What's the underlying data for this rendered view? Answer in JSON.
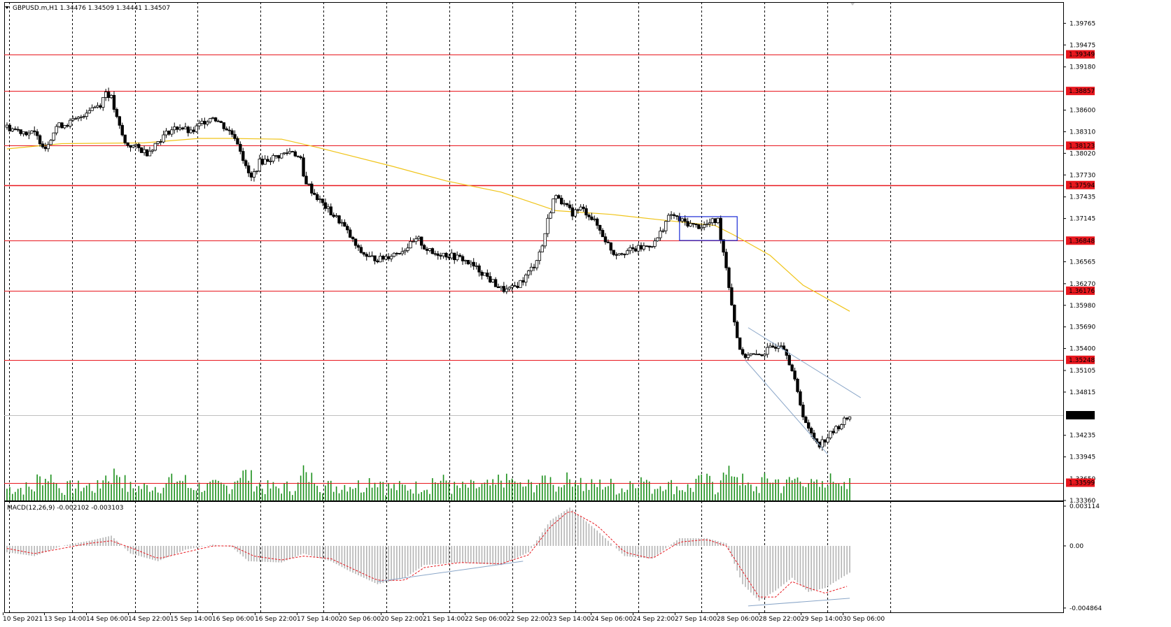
{
  "header": {
    "symbol_line": "GBPUSD.m,H1  1.34476 1.34509 1.34441 1.34507"
  },
  "macd": {
    "label": "MACD(12,26,9) -0.002102 -0.003103",
    "scale_labels": [
      "0.003114",
      "0.00",
      "-0.004864"
    ]
  },
  "colors": {
    "candle": "#000000",
    "volume": "#1a8f1a",
    "levels": "#e8171e",
    "ma": "#f0c419",
    "selection": "#1a2bd6",
    "channel": "#8aa6c8",
    "macd_hist": "#b4b4b4",
    "macd_signal": "#e8171e"
  },
  "chart_data": {
    "type": "candlestick",
    "symbol": "GBPUSD.m",
    "timeframe": "H1",
    "ohlc_current": {
      "open": 1.34476,
      "high": 1.34509,
      "low": 1.34441,
      "close": 1.34507
    },
    "ylim": [
      1.3336,
      1.4005
    ],
    "price_ticks": [
      1.39765,
      1.39475,
      1.3918,
      1.386,
      1.3831,
      1.3802,
      1.3773,
      1.37435,
      1.37145,
      1.36565,
      1.3627,
      1.3598,
      1.3569,
      1.354,
      1.35105,
      1.34815,
      1.34235,
      1.33945,
      1.3336
    ],
    "price_tick_labels": [
      "1.39765",
      "1.39475",
      "1.39180",
      "1.38600",
      "1.38310",
      "1.38020",
      "1.37730",
      "1.37435",
      "1.37145",
      "1.36565",
      "1.36270",
      "1.35980",
      "1.35690",
      "1.35400",
      "1.35105",
      "1.34815",
      "1.34235",
      "1.33945",
      "1.33360"
    ],
    "levels": [
      1.39349,
      1.38857,
      1.38123,
      1.37594,
      1.36848,
      1.36176,
      1.35248,
      1.33599
    ],
    "level_labels": [
      "1.39349",
      "1.38857",
      "1.38123",
      "1.37594",
      "1.36848",
      "1.36176",
      "1.35248",
      "1.33599"
    ],
    "current_price": 1.34507,
    "current_price_label": "1.34507",
    "faded_price_label": "1.33650",
    "x_labels": [
      "10 Sep 2021",
      "13 Sep 14:00",
      "14 Sep 06:00",
      "14 Sep 22:00",
      "15 Sep 14:00",
      "16 Sep 06:00",
      "16 Sep 22:00",
      "17 Sep 14:00",
      "20 Sep 06:00",
      "20 Sep 22:00",
      "21 Sep 14:00",
      "22 Sep 06:00",
      "22 Sep 22:00",
      "23 Sep 14:00",
      "24 Sep 06:00",
      "24 Sep 22:00",
      "27 Sep 14:00",
      "28 Sep 06:00",
      "28 Sep 22:00",
      "29 Sep 14:00",
      "30 Sep 06:00"
    ],
    "close_path": [
      [
        0,
        1.3837
      ],
      [
        5,
        1.3832
      ],
      [
        10,
        1.3828
      ],
      [
        14,
        1.381
      ],
      [
        18,
        1.3838
      ],
      [
        22,
        1.3842
      ],
      [
        26,
        1.3848
      ],
      [
        30,
        1.3862
      ],
      [
        34,
        1.3868
      ],
      [
        36,
        1.3885
      ],
      [
        38,
        1.3876
      ],
      [
        40,
        1.3848
      ],
      [
        43,
        1.3815
      ],
      [
        47,
        1.381
      ],
      [
        51,
        1.3803
      ],
      [
        55,
        1.3818
      ],
      [
        59,
        1.3832
      ],
      [
        63,
        1.3838
      ],
      [
        67,
        1.3829
      ],
      [
        71,
        1.3843
      ],
      [
        75,
        1.3852
      ],
      [
        79,
        1.3838
      ],
      [
        83,
        1.3825
      ],
      [
        85,
        1.3808
      ],
      [
        87,
        1.3782
      ],
      [
        89,
        1.3768
      ],
      [
        92,
        1.379
      ],
      [
        96,
        1.3795
      ],
      [
        100,
        1.38
      ],
      [
        104,
        1.3806
      ],
      [
        107,
        1.3792
      ],
      [
        108,
        1.377
      ],
      [
        111,
        1.3752
      ],
      [
        114,
        1.3738
      ],
      [
        118,
        1.3722
      ],
      [
        122,
        1.3708
      ],
      [
        125,
        1.369
      ],
      [
        128,
        1.3672
      ],
      [
        132,
        1.3662
      ],
      [
        136,
        1.366
      ],
      [
        140,
        1.3666
      ],
      [
        144,
        1.3672
      ],
      [
        148,
        1.3682
      ],
      [
        150,
        1.3686
      ],
      [
        152,
        1.3676
      ],
      [
        155,
        1.3667
      ],
      [
        158,
        1.3668
      ],
      [
        162,
        1.3664
      ],
      [
        166,
        1.366
      ],
      [
        170,
        1.365
      ],
      [
        174,
        1.364
      ],
      [
        176,
        1.3632
      ],
      [
        178,
        1.3626
      ],
      [
        180,
        1.362
      ],
      [
        182,
        1.3618
      ],
      [
        184,
        1.362
      ],
      [
        188,
        1.3632
      ],
      [
        192,
        1.3652
      ],
      [
        195,
        1.3678
      ],
      [
        197,
        1.3712
      ],
      [
        199,
        1.374
      ],
      [
        201,
        1.3745
      ],
      [
        203,
        1.3732
      ],
      [
        206,
        1.3722
      ],
      [
        209,
        1.3728
      ],
      [
        212,
        1.372
      ],
      [
        215,
        1.3705
      ],
      [
        218,
        1.3686
      ],
      [
        221,
        1.3668
      ],
      [
        224,
        1.367
      ],
      [
        228,
        1.3672
      ],
      [
        232,
        1.3676
      ],
      [
        236,
        1.3682
      ],
      [
        238,
        1.3695
      ],
      [
        240,
        1.371
      ],
      [
        242,
        1.372
      ],
      [
        245,
        1.3712
      ],
      [
        248,
        1.3708
      ],
      [
        251,
        1.3704
      ],
      [
        254,
        1.3705
      ],
      [
        257,
        1.371
      ],
      [
        259,
        1.3712
      ],
      [
        260,
        1.369
      ],
      [
        262,
        1.365
      ],
      [
        264,
        1.36
      ],
      [
        266,
        1.3555
      ],
      [
        268,
        1.3528
      ],
      [
        270,
        1.3533
      ],
      [
        273,
        1.3529
      ],
      [
        276,
        1.3535
      ],
      [
        279,
        1.3542
      ],
      [
        282,
        1.3548
      ],
      [
        284,
        1.3535
      ],
      [
        286,
        1.351
      ],
      [
        288,
        1.348
      ],
      [
        290,
        1.3452
      ],
      [
        292,
        1.343
      ],
      [
        294,
        1.342
      ],
      [
        296,
        1.3412
      ],
      [
        298,
        1.3418
      ],
      [
        300,
        1.3425
      ],
      [
        302,
        1.3432
      ],
      [
        304,
        1.344
      ],
      [
        306,
        1.3446
      ],
      [
        307,
        1.3451
      ]
    ],
    "ma_path": [
      [
        0,
        1.3808
      ],
      [
        20,
        1.3815
      ],
      [
        50,
        1.3816
      ],
      [
        70,
        1.3822
      ],
      [
        80,
        1.3822
      ],
      [
        100,
        1.3821
      ],
      [
        113,
        1.381
      ],
      [
        140,
        1.3785
      ],
      [
        160,
        1.3765
      ],
      [
        180,
        1.375
      ],
      [
        200,
        1.3725
      ],
      [
        220,
        1.372
      ],
      [
        240,
        1.3712
      ],
      [
        258,
        1.3705
      ],
      [
        265,
        1.3692
      ],
      [
        278,
        1.3665
      ],
      [
        290,
        1.3625
      ],
      [
        307,
        1.359
      ]
    ],
    "selection_box": {
      "x0": 245,
      "x1": 266,
      "y_low": 1.3685,
      "y_high": 1.3717
    },
    "channel_lines": [
      {
        "from": [
          270,
          1.3568
        ],
        "to": [
          311,
          1.3474
        ]
      },
      {
        "from": [
          269,
          1.3524
        ],
        "to": [
          299,
          1.3398
        ]
      }
    ],
    "macd_ylim": [
      -0.0052,
      0.0035
    ],
    "macd_ticks": [
      0.003114,
      0.0,
      -0.004864
    ],
    "macd_hist": [
      [
        0,
        -0.0005
      ],
      [
        10,
        -0.0008
      ],
      [
        20,
        0.0
      ],
      [
        30,
        0.0004
      ],
      [
        38,
        0.0008
      ],
      [
        45,
        -0.0006
      ],
      [
        55,
        -0.0012
      ],
      [
        65,
        -0.0003
      ],
      [
        75,
        0.0001
      ],
      [
        82,
        -0.0001
      ],
      [
        88,
        -0.0012
      ],
      [
        100,
        -0.0013
      ],
      [
        108,
        -0.0006
      ],
      [
        118,
        -0.0012
      ],
      [
        125,
        -0.002
      ],
      [
        135,
        -0.003
      ],
      [
        145,
        -0.0025
      ],
      [
        152,
        -0.0015
      ],
      [
        165,
        -0.0013
      ],
      [
        180,
        -0.0015
      ],
      [
        190,
        -0.0005
      ],
      [
        198,
        0.002
      ],
      [
        205,
        0.003
      ],
      [
        215,
        0.0012
      ],
      [
        225,
        -0.0008
      ],
      [
        235,
        -0.001
      ],
      [
        245,
        0.0006
      ],
      [
        255,
        0.0006
      ],
      [
        262,
        0.0002
      ],
      [
        268,
        -0.003
      ],
      [
        274,
        -0.0043
      ],
      [
        280,
        -0.0035
      ],
      [
        286,
        -0.0025
      ],
      [
        292,
        -0.0036
      ],
      [
        298,
        -0.0033
      ],
      [
        307,
        -0.0021
      ]
    ],
    "macd_signal": [
      [
        0,
        -0.0002
      ],
      [
        10,
        -0.0006
      ],
      [
        20,
        -0.0002
      ],
      [
        30,
        0.0002
      ],
      [
        38,
        0.0004
      ],
      [
        47,
        -0.0003
      ],
      [
        55,
        -0.001
      ],
      [
        65,
        -0.0005
      ],
      [
        75,
        0.0
      ],
      [
        82,
        0.0
      ],
      [
        90,
        -0.0008
      ],
      [
        100,
        -0.0011
      ],
      [
        108,
        -0.0008
      ],
      [
        118,
        -0.001
      ],
      [
        125,
        -0.0017
      ],
      [
        135,
        -0.0027
      ],
      [
        145,
        -0.0027
      ],
      [
        152,
        -0.0017
      ],
      [
        165,
        -0.0013
      ],
      [
        180,
        -0.0014
      ],
      [
        190,
        -0.0007
      ],
      [
        198,
        0.0015
      ],
      [
        205,
        0.0028
      ],
      [
        215,
        0.0016
      ],
      [
        225,
        -0.0005
      ],
      [
        235,
        -0.001
      ],
      [
        245,
        0.0003
      ],
      [
        255,
        0.0005
      ],
      [
        262,
        0.0
      ],
      [
        268,
        -0.002
      ],
      [
        274,
        -0.004
      ],
      [
        280,
        -0.004
      ],
      [
        286,
        -0.0028
      ],
      [
        292,
        -0.0033
      ],
      [
        298,
        -0.0037
      ],
      [
        307,
        -0.0031
      ]
    ],
    "macd_divergence_lines": [
      {
        "from": [
          135,
          -0.0028
        ],
        "to": [
          188,
          -0.0012
        ]
      },
      {
        "from": [
          270,
          -0.0047
        ],
        "to": [
          307,
          -0.0041
        ]
      }
    ]
  }
}
